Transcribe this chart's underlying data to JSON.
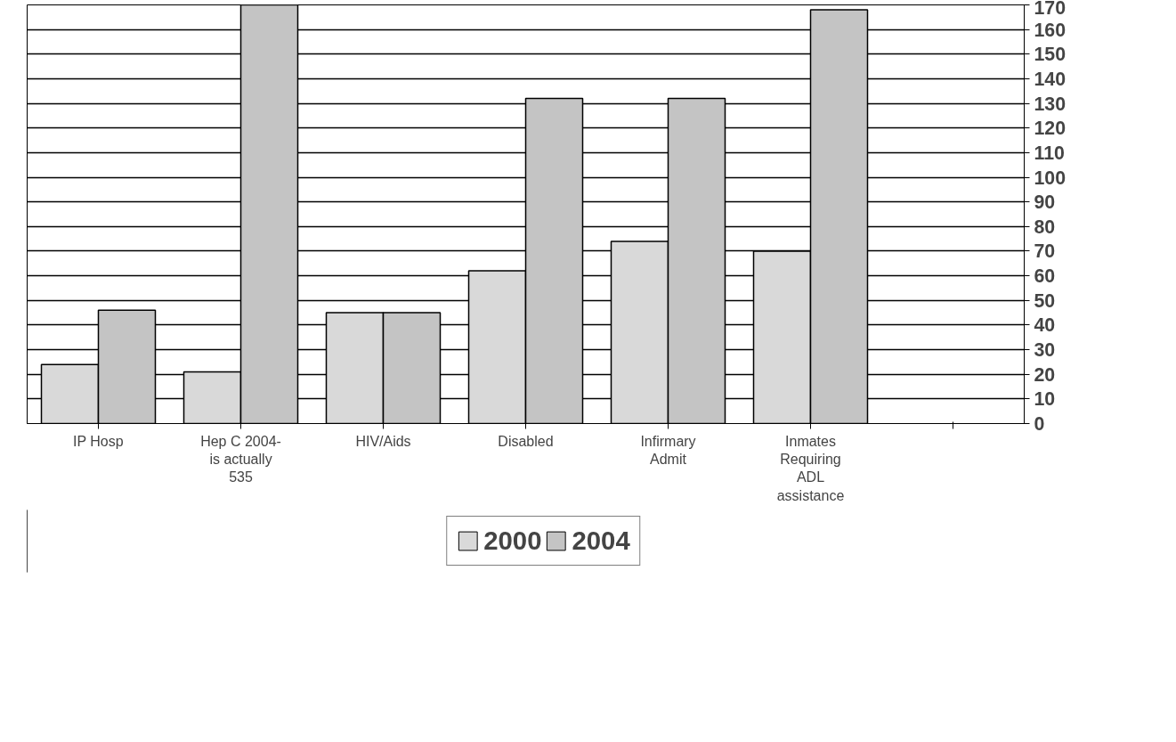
{
  "chart_data": {
    "type": "bar",
    "categories": [
      "IP Hosp",
      "Hep C 2004- is actually 535",
      "HIV/Aids",
      "Disabled",
      "Infirmary Admit",
      "Inmates Requiring ADL assistance",
      null
    ],
    "series": [
      {
        "name": "2000",
        "color": "#d9d9d9",
        "values": [
          24,
          21,
          45,
          62,
          74,
          70,
          null
        ]
      },
      {
        "name": "2004",
        "color": "#c4c4c4",
        "values": [
          46,
          170,
          45,
          132,
          132,
          168,
          null
        ]
      }
    ],
    "ylim": [
      0,
      170
    ],
    "yticks": [
      0,
      10,
      20,
      30,
      40,
      50,
      60,
      70,
      80,
      90,
      100,
      110,
      120,
      130,
      140,
      150,
      160,
      170
    ],
    "grid": "y",
    "legend": "bottom"
  }
}
